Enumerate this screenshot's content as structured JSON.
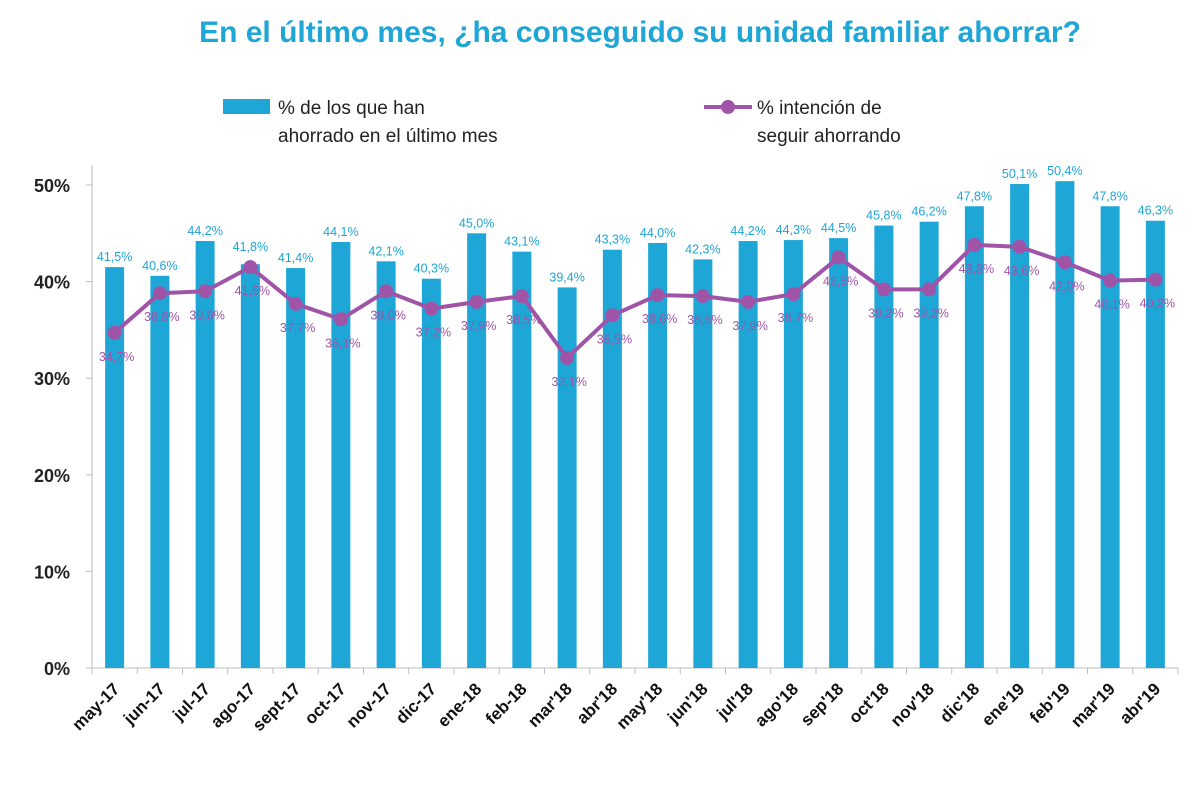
{
  "chart_data": {
    "type": "bar+line",
    "title": "En el último mes, ¿ha conseguido su unidad familiar ahorrar?",
    "categories": [
      "may-17",
      "jun-17",
      "jul-17",
      "ago-17",
      "sept-17",
      "oct-17",
      "nov-17",
      "dic-17",
      "ene-18",
      "feb-18",
      "mar'18",
      "abr'18",
      "may'18",
      "jun'18",
      "jul'18",
      "ago'18",
      "sep'18",
      "oct'18",
      "nov'18",
      "dic'18",
      "ene'19",
      "feb'19",
      "mar'19",
      "abr'19"
    ],
    "series": [
      {
        "name": "% de los que han ahorrado en el último mes",
        "legend_lines": [
          "% de los que han",
          "ahorrado en el último mes"
        ],
        "type": "bar",
        "color": "#1ea6d6",
        "values": [
          41.5,
          40.6,
          44.2,
          41.8,
          41.4,
          44.1,
          42.1,
          40.3,
          45.0,
          43.1,
          39.4,
          43.3,
          44.0,
          42.3,
          44.2,
          44.3,
          44.5,
          45.8,
          46.2,
          47.8,
          50.1,
          50.4,
          47.8,
          46.3
        ],
        "labels": [
          "41,5%",
          "40,6%",
          "44,2%",
          "41,8%",
          "41,4%",
          "44,1%",
          "42,1%",
          "40,3%",
          "45,0%",
          "43,1%",
          "39,4%",
          "43,3%",
          "44,0%",
          "42,3%",
          "44,2%",
          "44,3%",
          "44,5%",
          "45,8%",
          "46,2%",
          "47,8%",
          "50,1%",
          "50,4%",
          "47,8%",
          "46,3%"
        ]
      },
      {
        "name": "% intención de seguir ahorrando",
        "legend_lines": [
          "% intención de",
          "seguir ahorrando"
        ],
        "type": "line",
        "color": "#a054a8",
        "values": [
          34.7,
          38.8,
          39.0,
          41.5,
          37.7,
          36.1,
          39.0,
          37.2,
          37.9,
          38.5,
          32.1,
          36.5,
          38.6,
          38.5,
          37.9,
          38.7,
          42.5,
          39.2,
          39.2,
          43.8,
          43.6,
          42.0,
          40.1,
          40.2
        ],
        "labels": [
          "34,7%",
          "38,8%",
          "39,0%",
          "41,5%",
          "37,7%",
          "36,1%",
          "39,0%",
          "37,2%",
          "37,9%",
          "38,5%",
          "32,1%",
          "36,5%",
          "38,6%",
          "38,5%",
          "37,9%",
          "38,7%",
          "42,5%",
          "39,2%",
          "39,2%",
          "43,8%",
          "43,6%",
          "42,0%",
          "40,1%",
          "40,2%"
        ]
      }
    ],
    "y_ticks": [
      0,
      10,
      20,
      30,
      40,
      50
    ],
    "y_tick_labels": [
      "0%",
      "10%",
      "20%",
      "30%",
      "40%",
      "50%"
    ],
    "ylim": [
      0,
      50
    ],
    "xlabel": "",
    "ylabel": "",
    "legend_position": "top"
  }
}
